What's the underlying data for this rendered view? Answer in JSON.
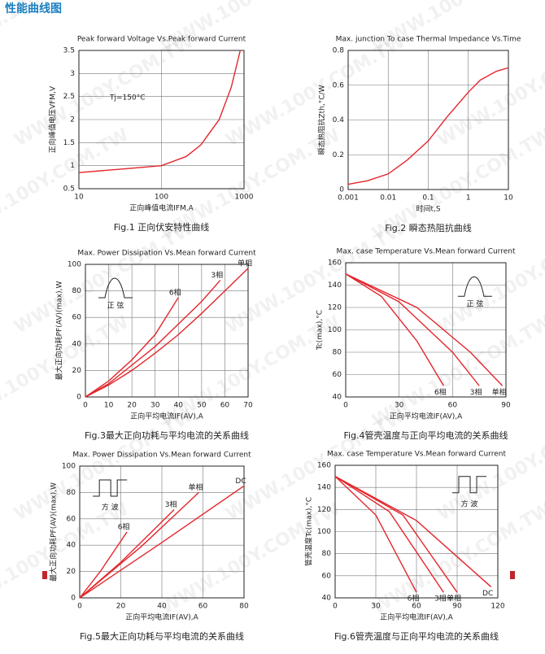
{
  "header": {
    "title": "性能曲线图"
  },
  "watermark": "WWW.100Y.COM.TW",
  "chart_data": [
    {
      "type": "line",
      "title": "Peak forward Voltage Vs.Peak forward Current",
      "xlabel": "正向峰值电流IFM,A",
      "ylabel": "正向峰值电压VFM,V",
      "caption": "Fig.1 正向伏安特性曲线",
      "annotation": "Tj=150°C",
      "xlog": true,
      "grid": true,
      "color": "#e3262c",
      "xlim": [
        10,
        1000
      ],
      "xticks": [
        10,
        100,
        1000
      ],
      "ylim": [
        0.5,
        3.5
      ],
      "yticks": [
        0.5,
        1,
        1.5,
        2,
        2.5,
        3,
        3.5
      ],
      "series": [
        {
          "x": [
            10,
            30,
            100,
            200,
            300,
            500,
            700,
            900
          ],
          "values": [
            0.85,
            0.92,
            1.0,
            1.2,
            1.45,
            2.0,
            2.7,
            3.5
          ]
        }
      ]
    },
    {
      "type": "line",
      "title": "Max. junction To case Thermal Impedance Vs.Time",
      "xlabel": "时间t,S",
      "ylabel": "瞬态热阻抗Zth,°C/W",
      "caption": "Fig.2 瞬态热阻抗曲线",
      "xlog": true,
      "grid": true,
      "color": "#e3262c",
      "xlim": [
        0.001,
        10
      ],
      "xticks": [
        0.001,
        0.01,
        0.1,
        1,
        10
      ],
      "ylim": [
        0,
        0.8
      ],
      "yticks": [
        0,
        0.2,
        0.4,
        0.6,
        0.8
      ],
      "series": [
        {
          "x": [
            0.001,
            0.003,
            0.01,
            0.03,
            0.1,
            0.3,
            1,
            2,
            5,
            10
          ],
          "values": [
            0.03,
            0.05,
            0.09,
            0.17,
            0.28,
            0.42,
            0.56,
            0.63,
            0.68,
            0.7
          ]
        }
      ]
    },
    {
      "type": "line",
      "title": "Max. Power Dissipation Vs.Mean forward Current",
      "xlabel": "正向平均电流IF(AV),A",
      "ylabel": "最大正向功耗PF(AV)(max),W",
      "caption": "Fig.3最大正向功耗与平均电流的关系曲线",
      "waveform": "sine",
      "waveform_label": "正 弦",
      "xlog": false,
      "grid": true,
      "color": "#e3262c",
      "xlim": [
        0,
        70
      ],
      "xticks": [
        0,
        10,
        20,
        30,
        40,
        50,
        60,
        70
      ],
      "ylim": [
        0,
        100
      ],
      "yticks": [
        0,
        20,
        40,
        60,
        80,
        100
      ],
      "series": [
        {
          "name": "6相",
          "x": [
            0,
            10,
            20,
            30,
            40
          ],
          "values": [
            0,
            12,
            28,
            47,
            75
          ]
        },
        {
          "name": "3相",
          "x": [
            0,
            10,
            20,
            30,
            40,
            50,
            58
          ],
          "values": [
            0,
            10,
            24,
            38,
            55,
            72,
            88
          ]
        },
        {
          "name": "单相",
          "x": [
            0,
            10,
            20,
            30,
            40,
            50,
            60,
            70
          ],
          "values": [
            0,
            9,
            20,
            33,
            47,
            63,
            80,
            97
          ]
        }
      ]
    },
    {
      "type": "line",
      "title": "Max. case Temperature Vs.Mean forward Current",
      "xlabel": "正向平均电流IF(AV),A",
      "ylabel": "Tc(max),°C",
      "caption": "Fig.4管壳温度与正向平均电流的关系曲线",
      "waveform": "sine",
      "waveform_label": "正 弦",
      "xlog": false,
      "grid": true,
      "color": "#e3262c",
      "xlim": [
        0,
        90
      ],
      "xticks": [
        0,
        30,
        60,
        90
      ],
      "ylim": [
        40,
        160
      ],
      "yticks": [
        40,
        60,
        80,
        100,
        120,
        140,
        160
      ],
      "series": [
        {
          "name": "6相",
          "x": [
            0,
            20,
            40,
            55
          ],
          "values": [
            150,
            130,
            90,
            50
          ]
        },
        {
          "name": "3相",
          "x": [
            0,
            30,
            60,
            75
          ],
          "values": [
            150,
            125,
            80,
            50
          ]
        },
        {
          "name": "单相",
          "x": [
            0,
            40,
            70,
            88
          ],
          "values": [
            150,
            120,
            80,
            50
          ]
        }
      ]
    },
    {
      "type": "line",
      "title": "Max. Power Dissipation Vs.Mean forward Current",
      "xlabel": "正向平均电流IF(AV),A",
      "ylabel": "最大正向功耗PF(AV)(max),W",
      "caption": "Fig.5最大正向功耗与平均电流的关系曲线",
      "waveform": "square",
      "waveform_label": "方 波",
      "xlog": false,
      "grid": true,
      "color": "#e3262c",
      "xlim": [
        0,
        80
      ],
      "xticks": [
        0,
        20,
        40,
        60,
        80
      ],
      "ylim": [
        0,
        100
      ],
      "yticks": [
        0,
        20,
        40,
        60,
        80,
        100
      ],
      "series": [
        {
          "name": "6相",
          "x": [
            0,
            10,
            23
          ],
          "values": [
            0,
            20,
            50
          ]
        },
        {
          "name": "3相",
          "x": [
            0,
            20,
            46
          ],
          "values": [
            0,
            27,
            67
          ]
        },
        {
          "name": "单相",
          "x": [
            0,
            30,
            58
          ],
          "values": [
            0,
            39,
            80
          ]
        },
        {
          "name": "DC",
          "x": [
            0,
            40,
            80
          ],
          "values": [
            0,
            42,
            85
          ]
        }
      ]
    },
    {
      "type": "line",
      "title": "Max. case Temperature Vs.Mean forward Current",
      "xlabel": "正向平均电流IF(AV),A",
      "ylabel": "管壳温度Tc(max),°C",
      "caption": "Fig.6管壳温度与正向平均电流的关系曲线",
      "waveform": "square",
      "waveform_label": "方 波",
      "xlog": false,
      "grid": true,
      "color": "#e3262c",
      "xlim": [
        0,
        120
      ],
      "xticks": [
        0,
        30,
        60,
        90,
        120
      ],
      "ylim": [
        40,
        160
      ],
      "yticks": [
        40,
        60,
        80,
        100,
        120,
        140,
        160
      ],
      "series": [
        {
          "name": "6相",
          "x": [
            0,
            30,
            60
          ],
          "values": [
            150,
            115,
            45
          ]
        },
        {
          "name": "3相",
          "x": [
            0,
            40,
            80
          ],
          "values": [
            150,
            118,
            45
          ]
        },
        {
          "name": "单相",
          "x": [
            0,
            50,
            90
          ],
          "values": [
            150,
            115,
            45
          ]
        },
        {
          "name": "DC",
          "x": [
            0,
            60,
            115
          ],
          "values": [
            150,
            110,
            50
          ]
        }
      ]
    }
  ]
}
